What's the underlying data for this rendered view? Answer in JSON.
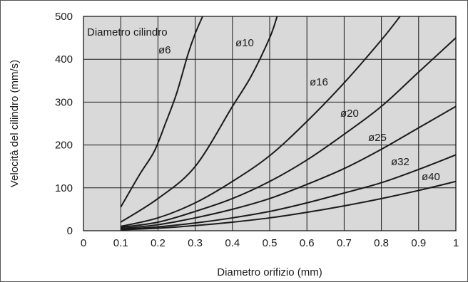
{
  "chart_data": {
    "type": "line",
    "title": "",
    "xlabel": "Diametro orifizio (mm)",
    "ylabel": "Velocità del cilindro (mm/s)",
    "xlim": [
      0,
      1
    ],
    "ylim": [
      0,
      500
    ],
    "x_ticks": [
      "0",
      "0.1",
      "0.2",
      "0.3",
      "0.4",
      "0.5",
      "0.6",
      "0.7",
      "0.8",
      "0.9",
      "1"
    ],
    "y_ticks": [
      "0",
      "100",
      "200",
      "300",
      "400",
      "500"
    ],
    "grid": true,
    "background_color": "#d9d9d9",
    "line_color": "#1a1a1a",
    "legend_title": "Diametro cilindro",
    "series": [
      {
        "name": "ø6",
        "x": [
          0.1,
          0.15,
          0.19,
          0.22,
          0.25,
          0.28,
          0.3,
          0.32
        ],
        "y": [
          55,
          130,
          185,
          250,
          320,
          410,
          460,
          500
        ]
      },
      {
        "name": "ø10",
        "x": [
          0.1,
          0.2,
          0.3,
          0.4,
          0.45,
          0.5,
          0.52
        ],
        "y": [
          20,
          75,
          150,
          290,
          360,
          450,
          500
        ]
      },
      {
        "name": "ø16",
        "x": [
          0.1,
          0.2,
          0.3,
          0.4,
          0.5,
          0.6,
          0.7,
          0.8,
          0.85
        ],
        "y": [
          10,
          30,
          65,
          115,
          175,
          255,
          345,
          445,
          500
        ]
      },
      {
        "name": "ø20",
        "x": [
          0.1,
          0.2,
          0.3,
          0.4,
          0.5,
          0.6,
          0.7,
          0.8,
          0.9,
          1.0
        ],
        "y": [
          8,
          20,
          45,
          75,
          115,
          165,
          225,
          290,
          370,
          450
        ]
      },
      {
        "name": "ø25",
        "x": [
          0.1,
          0.2,
          0.3,
          0.4,
          0.5,
          0.6,
          0.7,
          0.8,
          0.9,
          1.0
        ],
        "y": [
          5,
          14,
          30,
          50,
          75,
          108,
          145,
          190,
          240,
          290
        ]
      },
      {
        "name": "ø32",
        "x": [
          0.1,
          0.2,
          0.3,
          0.4,
          0.5,
          0.6,
          0.7,
          0.8,
          0.9,
          1.0
        ],
        "y": [
          3,
          9,
          18,
          30,
          45,
          65,
          88,
          112,
          143,
          177
        ]
      },
      {
        "name": "ø40",
        "x": [
          0.1,
          0.2,
          0.3,
          0.4,
          0.5,
          0.6,
          0.7,
          0.8,
          0.9,
          1.0
        ],
        "y": [
          2,
          6,
          12,
          20,
          30,
          43,
          58,
          75,
          94,
          115
        ]
      }
    ]
  }
}
